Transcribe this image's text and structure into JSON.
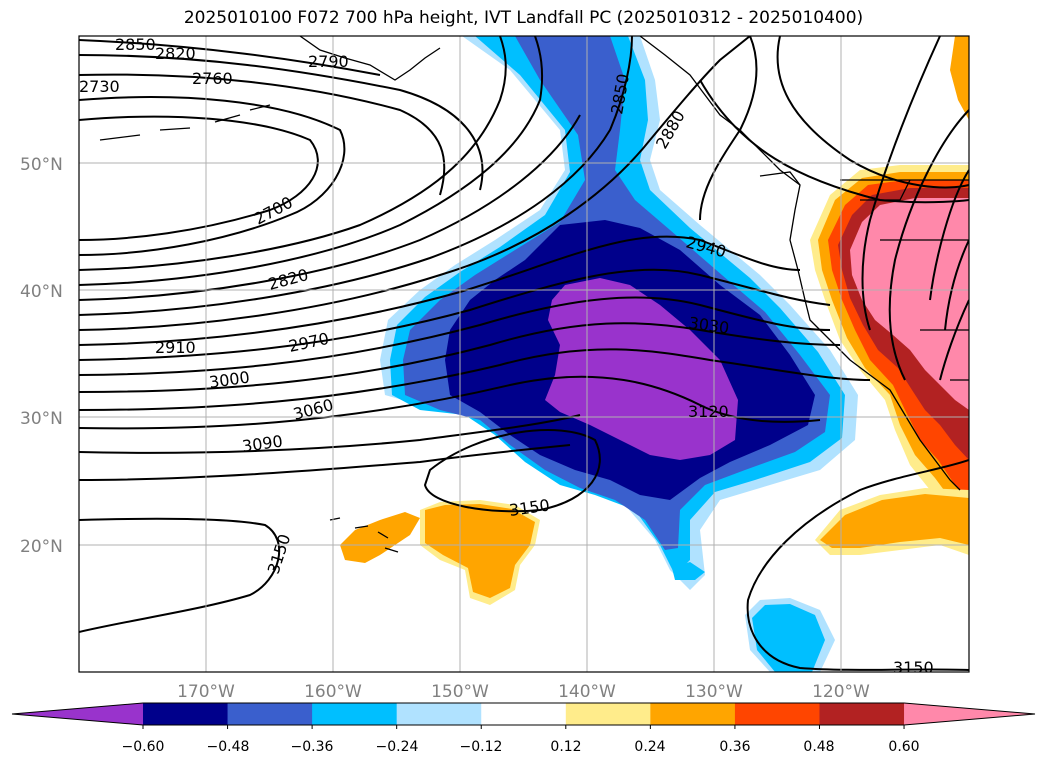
{
  "title": "2025010100 F072 700 hPa height, IVT Landfall PC (2025010312 - 2025010400)",
  "map": {
    "lon_range": [
      -180,
      -110
    ],
    "lat_range": [
      10,
      60
    ],
    "lat_ticks": [
      {
        "value": 20,
        "label": "20°N"
      },
      {
        "value": 30,
        "label": "30°N"
      },
      {
        "value": 40,
        "label": "40°N"
      },
      {
        "value": 50,
        "label": "50°N"
      }
    ],
    "lon_ticks": [
      {
        "value": -170,
        "label": "170°W"
      },
      {
        "value": -160,
        "label": "160°W"
      },
      {
        "value": -150,
        "label": "150°W"
      },
      {
        "value": -140,
        "label": "140°W"
      },
      {
        "value": -130,
        "label": "130°W"
      },
      {
        "value": -120,
        "label": "120°W"
      }
    ],
    "gridlines": true
  },
  "colorbar": {
    "ticks": [
      "−0.60",
      "−0.48",
      "−0.36",
      "−0.24",
      "−0.12",
      "0.12",
      "0.24",
      "0.36",
      "0.48",
      "0.60"
    ],
    "colors": [
      "#9933cc",
      "#00008b",
      "#3a5fcd",
      "#00bfff",
      "#b0e2ff",
      "#ffffff",
      "#ffec8b",
      "#ffa500",
      "#ff4500",
      "#b22222",
      "#ff88aa"
    ],
    "extend": "both"
  },
  "contour_labels": [
    "2850",
    "2820",
    "2760",
    "2730",
    "2790",
    "2700",
    "2820",
    "2910",
    "2970",
    "3000",
    "3060",
    "3090",
    "3150",
    "3150",
    "2850",
    "2880",
    "2940",
    "3030",
    "3120",
    "3150"
  ]
}
